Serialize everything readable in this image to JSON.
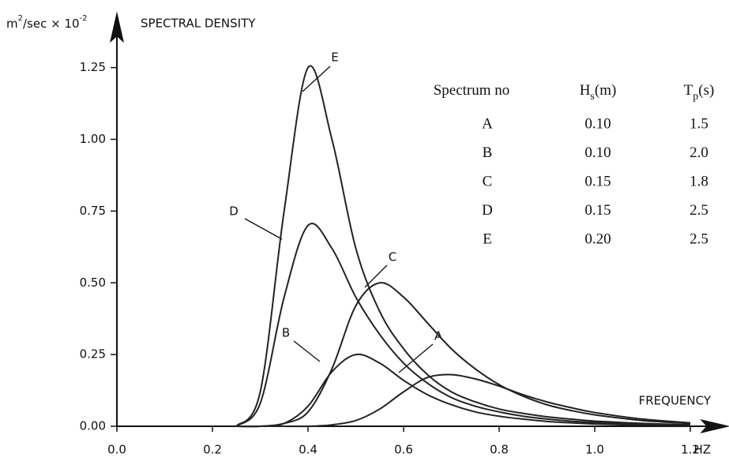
{
  "chart_data": {
    "type": "line",
    "ylabel": "SPECTRAL DENSITY",
    "yunit_parts": [
      "m",
      "2",
      "/sec × 10",
      "-2"
    ],
    "xlabel": "FREQUENCY",
    "xunit": "HZ",
    "x": [
      0.25,
      0.3,
      0.35,
      0.4,
      0.45,
      0.5,
      0.55,
      0.6,
      0.65,
      0.7,
      0.75,
      0.8,
      0.85,
      0.9,
      0.95,
      1.0,
      1.1,
      1.2
    ],
    "series": [
      {
        "name": "A",
        "color": "#222",
        "values": [
          0,
          0,
          0,
          0,
          0.005,
          0.02,
          0.06,
          0.12,
          0.17,
          0.18,
          0.165,
          0.14,
          0.11,
          0.085,
          0.065,
          0.048,
          0.025,
          0.012
        ]
      },
      {
        "name": "B",
        "color": "#222",
        "values": [
          0,
          0,
          0.01,
          0.07,
          0.19,
          0.25,
          0.22,
          0.16,
          0.11,
          0.075,
          0.05,
          0.035,
          0.025,
          0.017,
          0.012,
          0.008,
          0.004,
          0.002
        ]
      },
      {
        "name": "C",
        "color": "#222",
        "values": [
          0,
          0,
          0.01,
          0.05,
          0.2,
          0.42,
          0.5,
          0.45,
          0.36,
          0.27,
          0.2,
          0.145,
          0.105,
          0.075,
          0.055,
          0.04,
          0.02,
          0.01
        ]
      },
      {
        "name": "D",
        "color": "#222",
        "values": [
          0,
          0.08,
          0.45,
          0.7,
          0.62,
          0.45,
          0.32,
          0.22,
          0.15,
          0.1,
          0.07,
          0.05,
          0.035,
          0.025,
          0.018,
          0.013,
          0.007,
          0.003
        ]
      },
      {
        "name": "E",
        "color": "#222",
        "values": [
          0,
          0.12,
          0.75,
          1.25,
          1.0,
          0.62,
          0.4,
          0.27,
          0.18,
          0.12,
          0.085,
          0.06,
          0.045,
          0.033,
          0.025,
          0.018,
          0.01,
          0.005
        ]
      }
    ],
    "xlim": [
      0,
      1.27
    ],
    "ylim": [
      0,
      1.43
    ],
    "xticks": [
      {
        "value": 0,
        "label": "0.0"
      },
      0.2,
      0.4,
      0.6,
      0.8,
      {
        "value": 1,
        "label": "1.0"
      },
      1.2
    ],
    "yticks": [
      {
        "value": 0,
        "label": "0.00"
      },
      0.25,
      {
        "value": 0.5,
        "label": "0.50"
      },
      0.75,
      {
        "value": 1,
        "label": "1.00"
      },
      1.25
    ],
    "table": {
      "header": [
        {
          "main": "Spectrum no"
        },
        {
          "main": "H",
          "sub": "s",
          "unit": "(m)"
        },
        {
          "main": "T",
          "sub": "p",
          "unit": "(s)"
        }
      ],
      "rows": [
        [
          "A",
          "0.10",
          "1.5"
        ],
        [
          "B",
          "0.10",
          "2.0"
        ],
        [
          "C",
          "0.15",
          "1.8"
        ],
        [
          "D",
          "0.15",
          "2.5"
        ],
        [
          "E",
          "0.20",
          "2.5"
        ]
      ]
    }
  }
}
